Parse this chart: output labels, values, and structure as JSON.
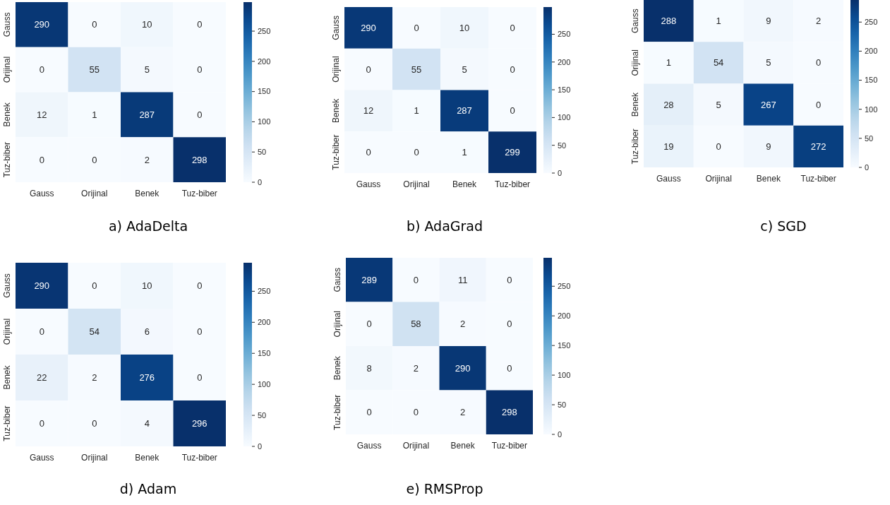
{
  "chart_data": [
    {
      "type": "heatmap",
      "title": "a) AdaDelta",
      "categories": [
        "Gauss",
        "Orijinal",
        "Benek",
        "Tuz-biber"
      ],
      "y_categories": [
        "Gauss",
        "Orijinal",
        "Benek",
        "Tuz-biber"
      ],
      "cells": [
        [
          290,
          0,
          10,
          0
        ],
        [
          0,
          55,
          5,
          0
        ],
        [
          12,
          1,
          287,
          0
        ],
        [
          0,
          0,
          2,
          298
        ]
      ],
      "data_labels": true,
      "clim": [
        0,
        298
      ],
      "cticks": [
        0,
        50,
        100,
        150,
        200,
        250
      ]
    },
    {
      "type": "heatmap",
      "title": "b) AdaGrad",
      "categories": [
        "Gauss",
        "Orijinal",
        "Benek",
        "Tuz-biber"
      ],
      "y_categories": [
        "Gauss",
        "Orijinal",
        "Benek",
        "Tuz-biber"
      ],
      "cells": [
        [
          290,
          0,
          10,
          0
        ],
        [
          0,
          55,
          5,
          0
        ],
        [
          12,
          1,
          287,
          0
        ],
        [
          0,
          0,
          1,
          299
        ]
      ],
      "data_labels": true,
      "clim": [
        0,
        299
      ],
      "cticks": [
        0,
        50,
        100,
        150,
        200,
        250
      ]
    },
    {
      "type": "heatmap",
      "title": "c) SGD",
      "categories": [
        "Gauss",
        "Orijinal",
        "Benek",
        "Tuz-biber"
      ],
      "y_categories": [
        "Gauss",
        "Orijinal",
        "Benek",
        "Tuz-biber"
      ],
      "cells": [
        [
          288,
          1,
          9,
          2
        ],
        [
          1,
          54,
          5,
          0
        ],
        [
          28,
          5,
          267,
          0
        ],
        [
          19,
          0,
          9,
          272
        ]
      ],
      "data_labels": true,
      "clim": [
        0,
        288
      ],
      "cticks": [
        0,
        50,
        100,
        150,
        200,
        250
      ]
    },
    {
      "type": "heatmap",
      "title": "d) Adam",
      "categories": [
        "Gauss",
        "Orijinal",
        "Benek",
        "Tuz-biber"
      ],
      "y_categories": [
        "Gauss",
        "Orijinal",
        "Benek",
        "Tuz-biber"
      ],
      "cells": [
        [
          290,
          0,
          10,
          0
        ],
        [
          0,
          54,
          6,
          0
        ],
        [
          22,
          2,
          276,
          0
        ],
        [
          0,
          0,
          4,
          296
        ]
      ],
      "data_labels": true,
      "clim": [
        0,
        296
      ],
      "cticks": [
        0,
        50,
        100,
        150,
        200,
        250
      ]
    },
    {
      "type": "heatmap",
      "title": "e) RMSProp",
      "categories": [
        "Gauss",
        "Orijinal",
        "Benek",
        "Tuz-biber"
      ],
      "y_categories": [
        "Gauss",
        "Orijinal",
        "Benek",
        "Tuz-biber"
      ],
      "cells": [
        [
          289,
          0,
          11,
          0
        ],
        [
          0,
          58,
          2,
          0
        ],
        [
          8,
          2,
          290,
          0
        ],
        [
          0,
          0,
          2,
          298
        ]
      ],
      "data_labels": true,
      "clim": [
        0,
        298
      ],
      "cticks": [
        0,
        50,
        100,
        150,
        200,
        250
      ]
    }
  ]
}
